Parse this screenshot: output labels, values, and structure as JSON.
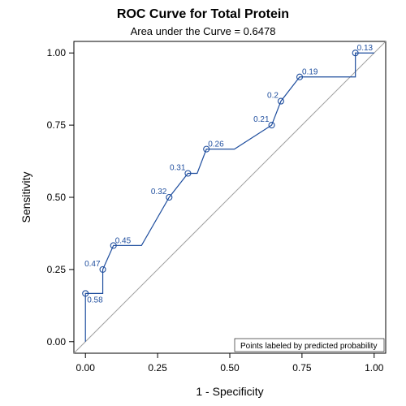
{
  "chart_data": {
    "type": "line",
    "title": "ROC Curve for Total Protein",
    "subtitle": "Area under the Curve = 0.6478",
    "xlabel": "1 - Specificity",
    "ylabel": "Sensitivity",
    "xlim": [
      -0.04,
      1.04
    ],
    "ylim": [
      -0.04,
      1.04
    ],
    "xticks": [
      "0.00",
      "0.25",
      "0.50",
      "0.75",
      "1.00"
    ],
    "yticks": [
      "0.00",
      "0.25",
      "0.50",
      "0.75",
      "1.00"
    ],
    "grid": false,
    "diagonal_reference": true,
    "inset_note": "Points labeled by predicted probability",
    "series": [
      {
        "x": [
          0,
          0,
          0.06,
          0.06,
          0.097,
          0.194,
          0.29,
          0.355,
          0.387,
          0.419,
          0.516,
          0.645,
          0.677,
          0.742,
          0.935,
          0.935,
          1.0
        ],
        "y": [
          0,
          0.167,
          0.167,
          0.25,
          0.333,
          0.333,
          0.5,
          0.583,
          0.583,
          0.667,
          0.667,
          0.75,
          0.833,
          0.917,
          0.917,
          1.0,
          1.0
        ]
      }
    ],
    "labeled_points": [
      {
        "label": "0.58",
        "x": 0.0,
        "y": 0.167
      },
      {
        "label": "0.47",
        "x": 0.06,
        "y": 0.25
      },
      {
        "label": "0.45",
        "x": 0.097,
        "y": 0.333
      },
      {
        "label": "0.32",
        "x": 0.29,
        "y": 0.5
      },
      {
        "label": "0.31",
        "x": 0.355,
        "y": 0.583
      },
      {
        "label": "0.26",
        "x": 0.419,
        "y": 0.667
      },
      {
        "label": "0.21",
        "x": 0.645,
        "y": 0.75
      },
      {
        "label": "0.2",
        "x": 0.677,
        "y": 0.833
      },
      {
        "label": "0.19",
        "x": 0.742,
        "y": 0.917
      },
      {
        "label": "0.13",
        "x": 0.935,
        "y": 1.0
      }
    ],
    "line_color": "#1f4e9e",
    "diagonal_color": "#a0a0a0"
  }
}
